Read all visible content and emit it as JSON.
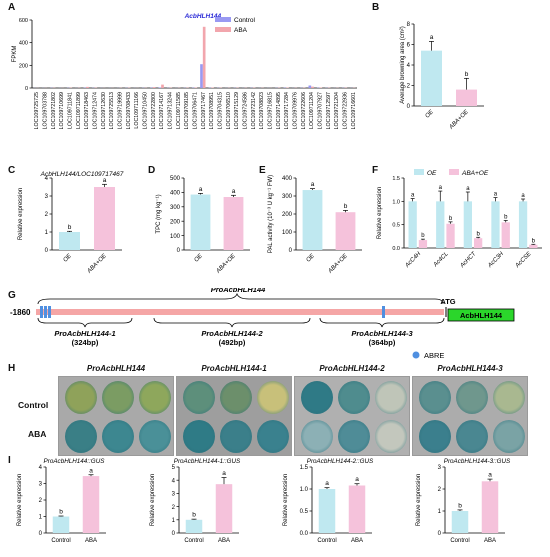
{
  "panels": {
    "A": "A",
    "B": "B",
    "C": "C",
    "D": "D",
    "E": "E",
    "F": "F",
    "G": "G",
    "H": "H",
    "I": "I"
  },
  "colors": {
    "control": "#9999f2",
    "aba": "#f2a6ad",
    "oe": "#bfe8f0",
    "abaoe": "#f5c2db",
    "promoter_line": "#f5a6a6",
    "abre_box": "#4f8fe0",
    "gene_box": "#2bd62b",
    "leaf_stain": "#2f7f8f"
  },
  "chart_data": [
    {
      "panel": "A",
      "type": "bar",
      "ylabel": "FPKM",
      "ylim": [
        0,
        600
      ],
      "yticks": [
        0,
        200,
        400,
        600
      ],
      "highlight_label": "AcbHLH144",
      "legend": [
        "Control",
        "ABA"
      ],
      "categories": [
        "LOC109725725",
        "LOC109703788",
        "LOC109721802",
        "LOC109710699",
        "LOC109711841",
        "LOC109711899",
        "LOC109718463",
        "LOC109712474",
        "LOC109712630",
        "LOC109725513",
        "LOC109719999",
        "LOC109708433",
        "LOC109711166",
        "LOC109710450",
        "LOC109722800",
        "LOC109714167",
        "LOC109713244",
        "LOC109711585",
        "LOC109709185",
        "LOC109706471",
        "LOC109717467",
        "LOC109708951",
        "LOC109704315",
        "LOC109706510",
        "LOC109715129",
        "LOC109724586",
        "LOC109723142",
        "LOC109708823",
        "LOC109716815",
        "LOC109714895",
        "LOC109717284",
        "LOC109709976",
        "LOC109722606",
        "LOC109711204",
        "LOC109707927",
        "LOC109712597",
        "LOC109721204",
        "LOC109722936",
        "LOC109716601"
      ],
      "series": [
        {
          "name": "Control",
          "values": [
            1,
            1,
            2,
            1,
            2,
            1,
            3,
            2,
            1,
            1,
            1,
            2,
            1,
            2,
            3,
            5,
            2,
            1,
            2,
            3,
            210,
            3,
            2,
            1,
            2,
            1,
            2,
            1,
            1,
            2,
            3,
            1,
            2,
            22,
            3,
            2,
            1,
            2,
            1
          ]
        },
        {
          "name": "ABA",
          "values": [
            1,
            1,
            2,
            1,
            3,
            2,
            10,
            3,
            1,
            1,
            2,
            3,
            1,
            2,
            8,
            30,
            3,
            2,
            3,
            4,
            540,
            4,
            3,
            2,
            3,
            2,
            3,
            2,
            1,
            3,
            4,
            2,
            3,
            12,
            4,
            3,
            2,
            3,
            2
          ]
        }
      ]
    },
    {
      "panel": "B",
      "type": "bar",
      "ylabel": "Average browning area (cm²)",
      "ylim": [
        0,
        8
      ],
      "yticks": [
        0,
        2,
        4,
        6,
        8
      ],
      "categories": [
        "OE",
        "ABA+OE"
      ],
      "values": [
        5.4,
        1.6
      ],
      "errors": [
        0.9,
        1.1
      ],
      "letters": [
        "a",
        "b"
      ]
    },
    {
      "panel": "C",
      "type": "bar",
      "title": "AcbHLH144/LOC109717467",
      "ylabel": "Relative expression",
      "ylim": [
        0,
        4
      ],
      "yticks": [
        0,
        1,
        2,
        3,
        4
      ],
      "categories": [
        "OE",
        "ABA+OE"
      ],
      "values": [
        1.0,
        3.5
      ],
      "errors": [
        0.04,
        0.15
      ],
      "letters": [
        "b",
        "a"
      ]
    },
    {
      "panel": "D",
      "type": "bar",
      "ylabel": "TPC (mg kg⁻¹)",
      "ylim": [
        0,
        500
      ],
      "yticks": [
        0,
        100,
        200,
        300,
        400,
        500
      ],
      "categories": [
        "OE",
        "ABA+OE"
      ],
      "values": [
        385,
        368
      ],
      "errors": [
        8,
        12
      ],
      "letters": [
        "a",
        "a"
      ]
    },
    {
      "panel": "E",
      "type": "bar",
      "ylabel": "PAL activity (10⁻³ U kg⁻¹ FW)",
      "ylim": [
        0,
        400
      ],
      "yticks": [
        0,
        100,
        200,
        300,
        400
      ],
      "categories": [
        "OE",
        "ABA+OE"
      ],
      "values": [
        333,
        210
      ],
      "errors": [
        8,
        10
      ],
      "letters": [
        "a",
        "b"
      ]
    },
    {
      "panel": "F",
      "type": "bar",
      "ylabel": "Relative expression",
      "ylim": [
        0,
        1.5
      ],
      "yticks": [
        0.0,
        0.5,
        1.0,
        1.5
      ],
      "legend": [
        "OE",
        "ABA+OE"
      ],
      "categories": [
        "AcC4H",
        "Ac4CL",
        "AcHCT",
        "AcC3H",
        "AcCSE"
      ],
      "series": [
        {
          "name": "OE",
          "values": [
            1.0,
            1.0,
            1.0,
            1.0,
            1.0
          ],
          "errors": [
            0.06,
            0.22,
            0.2,
            0.08,
            0.05
          ]
        },
        {
          "name": "ABA+OE",
          "values": [
            0.17,
            0.52,
            0.21,
            0.55,
            0.07
          ],
          "errors": [
            0.02,
            0.04,
            0.02,
            0.04,
            0.01
          ]
        }
      ],
      "letters_oe": [
        "a",
        "a",
        "a",
        "a",
        "a"
      ],
      "letters_aba": [
        "b",
        "b",
        "b",
        "b",
        "b"
      ]
    },
    {
      "panel": "I1",
      "type": "bar",
      "title": "ProAcbHLH144::GUS",
      "ylabel": "Relative expression",
      "ylim": [
        0,
        4
      ],
      "yticks": [
        0,
        1,
        2,
        3,
        4
      ],
      "categories": [
        "Control",
        "ABA"
      ],
      "values": [
        1.0,
        3.45
      ],
      "errors": [
        0.03,
        0.08
      ],
      "letters": [
        "b",
        "a"
      ]
    },
    {
      "panel": "I2",
      "type": "bar",
      "title": "ProAcbHLH144-1::GUS",
      "ylabel": "Relative expression",
      "ylim": [
        0,
        5
      ],
      "yticks": [
        0,
        1,
        2,
        3,
        4,
        5
      ],
      "categories": [
        "Control",
        "ABA"
      ],
      "values": [
        1.0,
        3.7
      ],
      "errors": [
        0.05,
        0.5
      ],
      "letters": [
        "b",
        "a"
      ]
    },
    {
      "panel": "I3",
      "type": "bar",
      "title": "ProAcbHLH144-2::GUS",
      "ylabel": "Relative expression",
      "ylim": [
        0,
        1.5
      ],
      "yticks": [
        0.0,
        0.5,
        1.0,
        1.5
      ],
      "categories": [
        "Control",
        "ABA"
      ],
      "values": [
        1.0,
        1.08
      ],
      "errors": [
        0.03,
        0.04
      ],
      "letters": [
        "a",
        "a"
      ]
    },
    {
      "panel": "I4",
      "type": "bar",
      "title": "ProAcbHLH144-3::GUS",
      "ylabel": "Relative expression",
      "ylim": [
        0,
        3
      ],
      "yticks": [
        0,
        1,
        2,
        3
      ],
      "categories": [
        "Control",
        "ABA"
      ],
      "values": [
        1.0,
        2.35
      ],
      "errors": [
        0.05,
        0.1
      ],
      "letters": [
        "b",
        "a"
      ]
    }
  ],
  "promoter": {
    "start_label": "-1860",
    "top_label": "ProAcbHLH144",
    "atg_label": "ATG",
    "gene_label": "AcbHLH144",
    "segments": [
      {
        "name": "ProAcbHLH144-1",
        "size": "(324bp)"
      },
      {
        "name": "ProAcbHLH144-2",
        "size": "(492bp)"
      },
      {
        "name": "ProAcbHLH144-3",
        "size": "(364bp)"
      }
    ],
    "legend_label": "ABRE"
  },
  "gus_panel": {
    "columns": [
      "ProAcbHLH144",
      "ProAcbHLH144-1",
      "ProAcbHLH144-2",
      "ProAcbHLH144-3"
    ],
    "rows": [
      "Control",
      "ABA"
    ]
  }
}
